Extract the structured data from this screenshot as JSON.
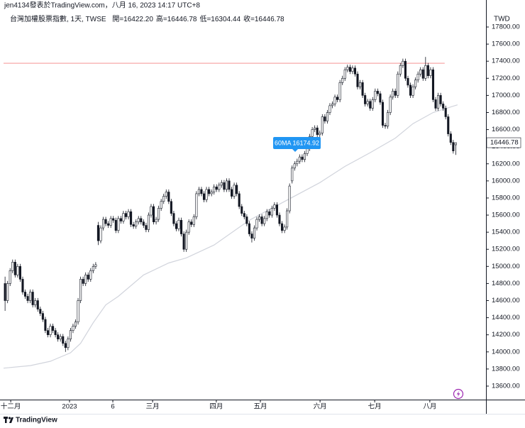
{
  "chart_data": {
    "type": "candlestick",
    "byline": "jen4134發表於TradingView.com，八月 16, 2023 14:17 UTC+8",
    "symbol": "台灣加權股票指數, 1天, TWSE",
    "ohlc_labels": [
      "開=16422.20",
      "高=16446.78",
      "低=16304.44",
      "收=16446.78"
    ],
    "currency": "TWD",
    "brand": "TradingView",
    "up_color": "#ffffff",
    "down_color": "#131722",
    "outline_color": "#131722",
    "ohlc": [
      [
        14800,
        14880,
        14480,
        14600
      ],
      [
        14600,
        14830,
        14570,
        14800
      ],
      [
        14800,
        14980,
        14770,
        14950
      ],
      [
        14950,
        15080,
        14920,
        15050
      ],
      [
        15050,
        15080,
        14870,
        14900
      ],
      [
        14900,
        15030,
        14870,
        15000
      ],
      [
        15000,
        15030,
        14820,
        14850
      ],
      [
        14850,
        14880,
        14670,
        14700
      ],
      [
        14700,
        14730,
        14620,
        14650
      ],
      [
        14650,
        14680,
        14570,
        14600
      ],
      [
        14600,
        14730,
        14570,
        14700
      ],
      [
        14700,
        14730,
        14520,
        14550
      ],
      [
        14550,
        14630,
        14520,
        14600
      ],
      [
        14600,
        14630,
        14470,
        14500
      ],
      [
        14500,
        14530,
        14420,
        14450
      ],
      [
        14450,
        14480,
        14350,
        14380
      ],
      [
        14380,
        14410,
        14220,
        14250
      ],
      [
        14250,
        14280,
        14170,
        14200
      ],
      [
        14200,
        14330,
        14170,
        14300
      ],
      [
        14300,
        14330,
        14220,
        14250
      ],
      [
        14250,
        14280,
        14170,
        14200
      ],
      [
        14200,
        14230,
        14120,
        14150
      ],
      [
        14150,
        14210,
        14120,
        14180
      ],
      [
        14180,
        14210,
        14070,
        14100
      ],
      [
        14100,
        14130,
        14000,
        14050
      ],
      [
        14050,
        14180,
        14020,
        14150
      ],
      [
        14150,
        14280,
        14120,
        14250
      ],
      [
        14250,
        14330,
        14220,
        14300
      ],
      [
        14300,
        14380,
        14270,
        14350
      ],
      [
        14350,
        14630,
        14320,
        14600
      ],
      [
        14600,
        14880,
        14570,
        14850
      ],
      [
        14850,
        14880,
        14770,
        14800
      ],
      [
        14800,
        14930,
        14770,
        14900
      ],
      [
        14900,
        14930,
        14820,
        14850
      ],
      [
        14850,
        14980,
        14820,
        14950
      ],
      [
        14950,
        15030,
        14920,
        15000
      ],
      [
        15000,
        15050,
        14970,
        15020
      ],
      [
        15480,
        15520,
        15250,
        15300
      ],
      [
        15300,
        15480,
        15270,
        15450
      ],
      [
        15450,
        15580,
        15420,
        15550
      ],
      [
        15550,
        15580,
        15470,
        15500
      ],
      [
        15500,
        15530,
        15450,
        15480
      ],
      [
        15480,
        15590,
        15450,
        15560
      ],
      [
        15560,
        15590,
        15510,
        15540
      ],
      [
        15540,
        15570,
        15390,
        15420
      ],
      [
        15420,
        15590,
        15390,
        15560
      ],
      [
        15560,
        15590,
        15500,
        15530
      ],
      [
        15530,
        15650,
        15500,
        15620
      ],
      [
        15620,
        15650,
        15550,
        15580
      ],
      [
        15580,
        15670,
        15550,
        15640
      ],
      [
        15640,
        15670,
        15460,
        15490
      ],
      [
        15490,
        15520,
        15440,
        15470
      ],
      [
        15470,
        15550,
        15440,
        15520
      ],
      [
        15520,
        15590,
        15490,
        15560
      ],
      [
        15560,
        15590,
        15490,
        15520
      ],
      [
        15520,
        15550,
        15450,
        15480
      ],
      [
        15480,
        15510,
        15400,
        15430
      ],
      [
        15430,
        15630,
        15400,
        15600
      ],
      [
        15600,
        15730,
        15570,
        15700
      ],
      [
        15700,
        15730,
        15490,
        15520
      ],
      [
        15520,
        15580,
        15490,
        15550
      ],
      [
        15550,
        15710,
        15520,
        15680
      ],
      [
        15680,
        15790,
        15650,
        15760
      ],
      [
        15760,
        15850,
        15730,
        15820
      ],
      [
        15820,
        15900,
        15790,
        15870
      ],
      [
        15870,
        15900,
        15730,
        15760
      ],
      [
        15760,
        15790,
        15590,
        15620
      ],
      [
        15620,
        15650,
        15470,
        15500
      ],
      [
        15500,
        15530,
        15410,
        15440
      ],
      [
        15440,
        15570,
        15410,
        15540
      ],
      [
        15540,
        15570,
        15350,
        15380
      ],
      [
        15380,
        15410,
        15170,
        15200
      ],
      [
        15200,
        15430,
        15170,
        15400
      ],
      [
        15400,
        15550,
        15370,
        15520
      ],
      [
        15520,
        15550,
        15460,
        15490
      ],
      [
        15490,
        15610,
        15460,
        15580
      ],
      [
        15580,
        15880,
        15550,
        15850
      ],
      [
        15850,
        15930,
        15820,
        15900
      ],
      [
        15900,
        15930,
        15820,
        15850
      ],
      [
        15850,
        15880,
        15750,
        15780
      ],
      [
        15780,
        15930,
        15750,
        15900
      ],
      [
        15900,
        15930,
        15820,
        15850
      ],
      [
        15850,
        15900,
        15820,
        15870
      ],
      [
        15870,
        15960,
        15840,
        15930
      ],
      [
        15930,
        15960,
        15870,
        15900
      ],
      [
        15900,
        15980,
        15870,
        15950
      ],
      [
        15950,
        16010,
        15920,
        15980
      ],
      [
        15980,
        16010,
        15870,
        15900
      ],
      [
        15900,
        16030,
        15870,
        16000
      ],
      [
        16000,
        16030,
        15870,
        15900
      ],
      [
        15900,
        15930,
        15790,
        15820
      ],
      [
        15820,
        15980,
        15790,
        15950
      ],
      [
        15950,
        15980,
        15820,
        15850
      ],
      [
        15850,
        15880,
        15670,
        15700
      ],
      [
        15700,
        15730,
        15590,
        15620
      ],
      [
        15620,
        15650,
        15550,
        15580
      ],
      [
        15580,
        15610,
        15470,
        15500
      ],
      [
        15500,
        15530,
        15350,
        15380
      ],
      [
        15380,
        15410,
        15280,
        15330
      ],
      [
        15330,
        15480,
        15300,
        15450
      ],
      [
        15450,
        15580,
        15420,
        15550
      ],
      [
        15550,
        15610,
        15520,
        15580
      ],
      [
        15580,
        15610,
        15470,
        15500
      ],
      [
        15500,
        15590,
        15470,
        15560
      ],
      [
        15560,
        15670,
        15530,
        15640
      ],
      [
        15640,
        15670,
        15570,
        15600
      ],
      [
        15600,
        15710,
        15570,
        15680
      ],
      [
        15680,
        15750,
        15650,
        15720
      ],
      [
        15720,
        15750,
        15570,
        15600
      ],
      [
        15600,
        15630,
        15470,
        15500
      ],
      [
        15500,
        15530,
        15390,
        15420
      ],
      [
        15420,
        15490,
        15390,
        15460
      ],
      [
        15460,
        15680,
        15430,
        15650
      ],
      [
        15650,
        15970,
        15620,
        15940
      ],
      [
        16000,
        16180,
        15970,
        16150
      ],
      [
        16150,
        16230,
        16120,
        16200
      ],
      [
        16200,
        16260,
        16170,
        16230
      ],
      [
        16230,
        16310,
        16200,
        16280
      ],
      [
        16280,
        16310,
        16220,
        16250
      ],
      [
        16250,
        16350,
        16220,
        16320
      ],
      [
        16320,
        16410,
        16290,
        16380
      ],
      [
        16380,
        16550,
        16350,
        16520
      ],
      [
        16520,
        16630,
        16490,
        16600
      ],
      [
        16600,
        16650,
        16570,
        16620
      ],
      [
        16620,
        16650,
        16510,
        16540
      ],
      [
        16540,
        16590,
        16510,
        16560
      ],
      [
        16560,
        16780,
        16530,
        16750
      ],
      [
        16750,
        16780,
        16670,
        16700
      ],
      [
        16700,
        16830,
        16670,
        16800
      ],
      [
        16800,
        16910,
        16770,
        16880
      ],
      [
        16880,
        16930,
        16850,
        16900
      ],
      [
        16900,
        17010,
        16870,
        16980
      ],
      [
        16980,
        17010,
        16920,
        16950
      ],
      [
        16950,
        17180,
        16920,
        17150
      ],
      [
        17150,
        17230,
        17120,
        17200
      ],
      [
        17200,
        17330,
        17170,
        17300
      ],
      [
        17300,
        17360,
        17270,
        17330
      ],
      [
        17330,
        17360,
        17250,
        17280
      ],
      [
        17280,
        17350,
        17250,
        17320
      ],
      [
        17320,
        17350,
        17220,
        17250
      ],
      [
        17250,
        17280,
        17070,
        17100
      ],
      [
        17100,
        17180,
        17070,
        17150
      ],
      [
        17150,
        17180,
        16970,
        17000
      ],
      [
        17000,
        17030,
        16870,
        16900
      ],
      [
        16900,
        16960,
        16870,
        16930
      ],
      [
        16930,
        16960,
        16820,
        16850
      ],
      [
        16850,
        16980,
        16820,
        16950
      ],
      [
        16950,
        17080,
        16920,
        17050
      ],
      [
        17050,
        17080,
        16990,
        17020
      ],
      [
        17020,
        17050,
        16890,
        16920
      ],
      [
        16920,
        16950,
        16620,
        16650
      ],
      [
        16650,
        16680,
        16610,
        16640
      ],
      [
        16640,
        16830,
        16610,
        16800
      ],
      [
        16800,
        17010,
        16770,
        16980
      ],
      [
        16980,
        17080,
        16950,
        17050
      ],
      [
        17050,
        17080,
        16970,
        17000
      ],
      [
        17000,
        17280,
        16970,
        17250
      ],
      [
        17250,
        17380,
        17220,
        17350
      ],
      [
        17350,
        17430,
        17320,
        17400
      ],
      [
        17400,
        17430,
        17170,
        17200
      ],
      [
        17200,
        17230,
        17090,
        17120
      ],
      [
        17120,
        17150,
        16970,
        17000
      ],
      [
        17000,
        17130,
        16970,
        17100
      ],
      [
        17100,
        17210,
        17070,
        17180
      ],
      [
        17180,
        17280,
        17150,
        17250
      ],
      [
        17250,
        17330,
        17220,
        17300
      ],
      [
        17300,
        17330,
        17170,
        17200
      ],
      [
        17200,
        17450,
        17170,
        17350
      ],
      [
        17350,
        17380,
        17200,
        17230
      ],
      [
        17230,
        17330,
        17200,
        17300
      ],
      [
        17300,
        17330,
        16920,
        16950
      ],
      [
        16950,
        16980,
        16820,
        16850
      ],
      [
        16850,
        17030,
        16820,
        17000
      ],
      [
        17000,
        17030,
        16870,
        16900
      ],
      [
        16900,
        16930,
        16820,
        16850
      ],
      [
        16850,
        16880,
        16720,
        16750
      ],
      [
        16750,
        16780,
        16520,
        16550
      ],
      [
        16550,
        16580,
        16420,
        16450
      ],
      [
        16450,
        16480,
        16320,
        16350
      ],
      [
        16422.2,
        16446.78,
        16304.44,
        16446.78
      ]
    ],
    "ma": {
      "color": "#d1d4dc",
      "x": [
        -0.6,
        10,
        18,
        26,
        30,
        35,
        40,
        45,
        55,
        65,
        72,
        83,
        97,
        111,
        125,
        135,
        145,
        155,
        162,
        170,
        179.7
      ],
      "values": [
        13810,
        13840,
        13890,
        13990,
        14100,
        14340,
        14550,
        14650,
        14900,
        15040,
        15100,
        15250,
        15540,
        15760,
        15980,
        16170,
        16330,
        16500,
        16670,
        16800,
        16890
      ]
    },
    "annotation": "60MA 16174.92",
    "annotation_color": "#2196f3",
    "hline": {
      "value": 17376,
      "color": "#f7a9a9",
      "x": [
        -0.6,
        174.6
      ]
    },
    "xlim": [
      -0.6,
      191
    ],
    "ylim": [
      13442,
      17958
    ],
    "xticks": [
      {
        "value": 2.25,
        "label": "十二月"
      },
      {
        "value": 25.6,
        "label": "2023"
      },
      {
        "value": 42.8,
        "label": "6"
      },
      {
        "value": 58.6,
        "label": "三月"
      },
      {
        "value": 83.9,
        "label": "四月"
      },
      {
        "value": 101.4,
        "label": "五月"
      },
      {
        "value": 125.1,
        "label": "六月"
      },
      {
        "value": 146.8,
        "label": "七月"
      },
      {
        "value": 168.7,
        "label": "八月"
      }
    ],
    "yticks": [
      {
        "value": 13600,
        "label": "13600.00"
      },
      {
        "value": 13800,
        "label": "13800.00"
      },
      {
        "value": 14000,
        "label": "14000.00"
      },
      {
        "value": 14200,
        "label": "14200.00"
      },
      {
        "value": 14400,
        "label": "14400.00"
      },
      {
        "value": 14600,
        "label": "14600.00"
      },
      {
        "value": 14800,
        "label": "14800.00"
      },
      {
        "value": 15000,
        "label": "15000.00"
      },
      {
        "value": 15200,
        "label": "15200.00"
      },
      {
        "value": 15400,
        "label": "15400.00"
      },
      {
        "value": 15600,
        "label": "15600.00"
      },
      {
        "value": 15800,
        "label": "15800.00"
      },
      {
        "value": 16000,
        "label": "16000.00"
      },
      {
        "value": 16200,
        "label": "16200.00"
      },
      {
        "value": 16400,
        "label": "16400.00"
      },
      {
        "value": 16600,
        "label": "16600.00"
      },
      {
        "value": 16800,
        "label": "16800.00"
      },
      {
        "value": 17000,
        "label": "17000.00"
      },
      {
        "value": 17200,
        "label": "17200.00"
      },
      {
        "value": 17400,
        "label": "17400.00"
      },
      {
        "value": 17600,
        "label": "17600.00"
      },
      {
        "value": 17800,
        "label": "17800.00"
      }
    ],
    "grid": false
  }
}
